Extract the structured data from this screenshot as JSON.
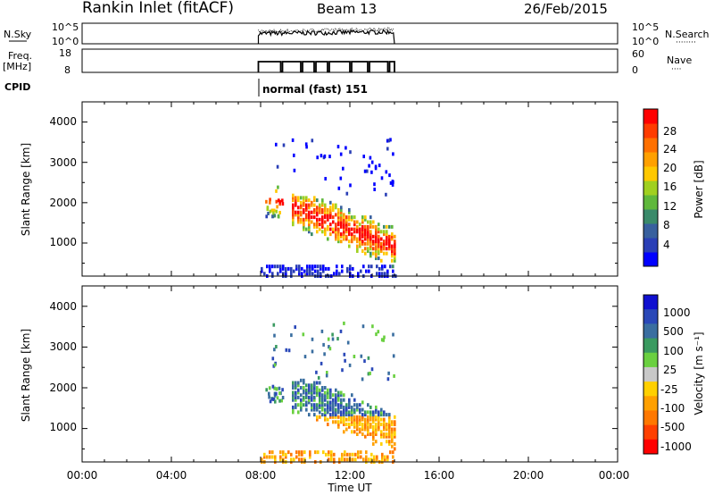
{
  "header": {
    "site": "Rankin Inlet (fitACF)",
    "beam": "Beam 13",
    "date": "26/Feb/2015"
  },
  "noise_panel": {
    "left_label": "N.Sky",
    "left_ticks": [
      "10^5",
      "10^0"
    ],
    "right_ticks": [
      "10^5",
      "10^0"
    ],
    "right_label": "N.Search",
    "right_dots": "········"
  },
  "freq_panel": {
    "left_label_top": "Freq.",
    "left_label_bottom": "[MHz]",
    "left_ticks": [
      "18",
      "8"
    ],
    "right_ticks": [
      "60",
      "0"
    ],
    "right_label": "Nave",
    "right_dots": "····"
  },
  "cpid": {
    "label": "CPID",
    "value": "normal (fast) 151"
  },
  "time_axis": {
    "label": "Time UT",
    "ticks": [
      "00:00",
      "04:00",
      "08:00",
      "12:00",
      "16:00",
      "20:00",
      "00:00"
    ]
  },
  "panels": [
    {
      "ylabel": "Slant Range [km]",
      "yticks": [
        "1000",
        "2000",
        "3000",
        "4000"
      ],
      "colorbar_label": "Power [dB]",
      "colorbar_ticks": [
        "28",
        "24",
        "20",
        "16",
        "12",
        "8",
        "4"
      ]
    },
    {
      "ylabel": "Slant Range [km]",
      "yticks": [
        "1000",
        "2000",
        "3000",
        "4000"
      ],
      "colorbar_label": "Velocity [m s⁻¹]",
      "colorbar_ticks": [
        "1000",
        "500",
        "100",
        "25",
        "-25",
        "-100",
        "-500",
        "-1000"
      ]
    }
  ],
  "chart_data": [
    {
      "type": "heatmap",
      "title": "Rankin Inlet (fitACF) Beam 13 26/Feb/2015",
      "xlabel": "Time UT",
      "ylabel": "Slant Range [km]",
      "xlim": [
        "00:00",
        "24:00"
      ],
      "ylim": [
        180,
        4500
      ],
      "colorbar": {
        "label": "Power [dB]",
        "ticks": [
          4,
          8,
          12,
          16,
          20,
          24,
          28
        ]
      },
      "grid": false
    },
    {
      "type": "heatmap",
      "title": "",
      "xlabel": "Time UT",
      "ylabel": "Slant Range [km]",
      "xlim": [
        "00:00",
        "24:00"
      ],
      "ylim": [
        180,
        4500
      ],
      "colorbar": {
        "label": "Velocity [m s⁻¹]",
        "ticks": [
          1000,
          500,
          100,
          25,
          -25,
          -100,
          -500,
          -1000
        ]
      },
      "grid": false
    }
  ],
  "colors": {
    "power_scale": [
      "#0000ff",
      "#2a3fb6",
      "#38609e",
      "#3a8a6a",
      "#5fb83c",
      "#a0d020",
      "#ffc800",
      "#ffa000",
      "#ff7000",
      "#ff3c00",
      "#ff0000"
    ],
    "velocity_scale": [
      "#1010d0",
      "#2a48b8",
      "#3a6ea0",
      "#3a9a60",
      "#6ad040",
      "#c8c8c8",
      "#ffd000",
      "#ffa000",
      "#ff7800",
      "#ff4000",
      "#ff0000"
    ]
  }
}
